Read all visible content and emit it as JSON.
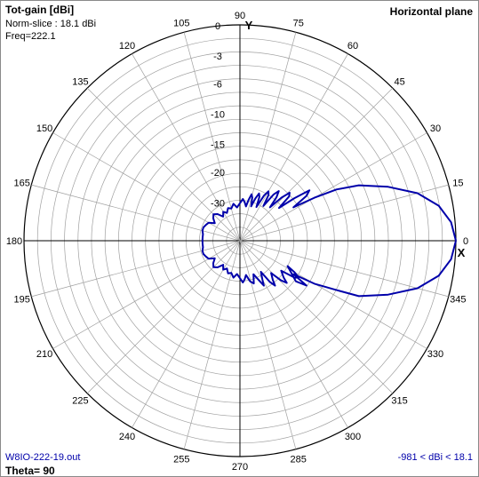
{
  "header": {
    "title": "Tot-gain [dBi]",
    "norm_slice": "Norm-slice : 18.1 dBi",
    "freq": "Freq=222.1",
    "plane": "Horizontal plane"
  },
  "footer": {
    "file": "W8IO-222-19.out",
    "theta": "Theta= 90",
    "range": "-981 < dBi < 18.1"
  },
  "axes": {
    "y_label": "Y",
    "x_label": "X"
  },
  "colors": {
    "trace": "#0000aa",
    "grid": "#a0a0a0",
    "axis": "#000000"
  },
  "chart_data": {
    "type": "polar",
    "angle_labels": [
      "0",
      "15",
      "30",
      "45",
      "60",
      "75",
      "90",
      "105",
      "120",
      "135",
      "150",
      "165",
      "180",
      "195",
      "210",
      "225",
      "240",
      "255",
      "270",
      "285",
      "300",
      "315",
      "330",
      "345"
    ],
    "radial_labels": [
      "0",
      "-3",
      "-6",
      "-10",
      "-15",
      "-20",
      "-30"
    ],
    "radial_scale": [
      0,
      -3,
      -6,
      -10,
      -15,
      -20,
      -30
    ],
    "series": [
      {
        "points": [
          [
            0,
            0
          ],
          [
            5,
            -0.4
          ],
          [
            10,
            -1.4
          ],
          [
            15,
            -3.2
          ],
          [
            20,
            -6
          ],
          [
            25,
            -9.5
          ],
          [
            28,
            -13
          ],
          [
            30,
            -17
          ],
          [
            32,
            -22
          ],
          [
            34,
            -18
          ],
          [
            36,
            -17
          ],
          [
            38,
            -20
          ],
          [
            40,
            -26
          ],
          [
            42,
            -21
          ],
          [
            44,
            -20
          ],
          [
            46,
            -23
          ],
          [
            48,
            -28
          ],
          [
            50,
            -24
          ],
          [
            52,
            -22
          ],
          [
            54,
            -24
          ],
          [
            56,
            -29
          ],
          [
            58,
            -25
          ],
          [
            60,
            -24
          ],
          [
            62,
            -26
          ],
          [
            64,
            -31
          ],
          [
            66,
            -27
          ],
          [
            68,
            -26
          ],
          [
            70,
            -28
          ],
          [
            72,
            -32
          ],
          [
            74,
            -28
          ],
          [
            76,
            -27
          ],
          [
            78,
            -29
          ],
          [
            80,
            -33
          ],
          [
            83,
            -30
          ],
          [
            86,
            -29
          ],
          [
            90,
            -31
          ],
          [
            95,
            -34
          ],
          [
            100,
            -31
          ],
          [
            105,
            -34
          ],
          [
            110,
            -33
          ],
          [
            115,
            -36
          ],
          [
            120,
            -34
          ],
          [
            125,
            -37
          ],
          [
            130,
            -33
          ],
          [
            135,
            -31
          ],
          [
            140,
            -33
          ],
          [
            145,
            -36
          ],
          [
            150,
            -32
          ],
          [
            155,
            -31
          ],
          [
            160,
            -30
          ],
          [
            165,
            -30
          ],
          [
            170,
            -31
          ],
          [
            175,
            -31
          ],
          [
            180,
            -31
          ],
          [
            185,
            -31
          ],
          [
            190,
            -31
          ],
          [
            195,
            -30
          ],
          [
            200,
            -30
          ],
          [
            205,
            -31
          ],
          [
            210,
            -32
          ],
          [
            215,
            -36
          ],
          [
            220,
            -33
          ],
          [
            225,
            -31
          ],
          [
            230,
            -33
          ],
          [
            235,
            -37
          ],
          [
            240,
            -34
          ],
          [
            245,
            -36
          ],
          [
            250,
            -33
          ],
          [
            255,
            -34
          ],
          [
            260,
            -31
          ],
          [
            265,
            -34
          ],
          [
            270,
            -31
          ],
          [
            274,
            -29
          ],
          [
            277,
            -30
          ],
          [
            280,
            -33
          ],
          [
            284,
            -29
          ],
          [
            288,
            -28
          ],
          [
            292,
            -32
          ],
          [
            296,
            -28
          ],
          [
            298,
            -26
          ],
          [
            300,
            -28
          ],
          [
            304,
            -31
          ],
          [
            306,
            -26
          ],
          [
            308,
            -24
          ],
          [
            310,
            -26
          ],
          [
            314,
            -28
          ],
          [
            316,
            -24
          ],
          [
            318,
            -22
          ],
          [
            320,
            -24
          ],
          [
            324,
            -26
          ],
          [
            326,
            -21
          ],
          [
            328,
            -20
          ],
          [
            330,
            -22
          ],
          [
            332,
            -25
          ],
          [
            324,
            -20
          ],
          [
            326,
            -18
          ],
          [
            328,
            -22
          ],
          [
            330,
            -17
          ],
          [
            333,
            -13
          ],
          [
            335,
            -9.5
          ],
          [
            340,
            -6
          ],
          [
            345,
            -3.2
          ],
          [
            350,
            -1.4
          ],
          [
            355,
            -0.4
          ],
          [
            360,
            0
          ]
        ]
      }
    ],
    "grid": true
  }
}
